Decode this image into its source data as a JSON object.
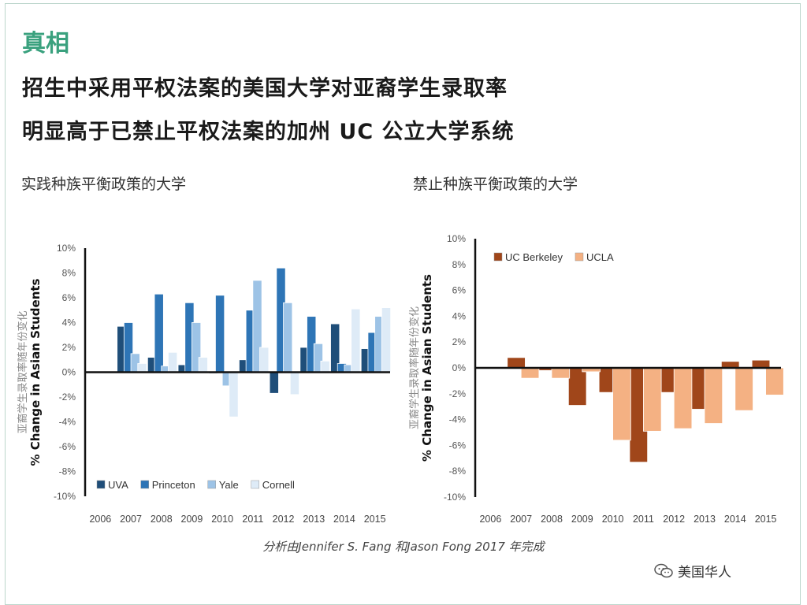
{
  "brand": "真相",
  "headline": {
    "line1": "招生中采用平权法案的美国大学对亚裔学生录取率",
    "line2": "明显高于已禁止平权法案的加州 UC 公立大学系统"
  },
  "left_subtitle": "实践种族平衡政策的大学",
  "right_subtitle": "禁止种族平衡政策的大学",
  "credit": "分析由Jennifer S. Fang 和Jason Fong 2017 年完成",
  "watermark": "美国华人",
  "colors": {
    "uva": "#1f4e79",
    "princeton": "#2e75b6",
    "yale": "#9dc3e6",
    "cornell": "#deebf7",
    "ucb": "#a0461a",
    "ucla": "#f4b183",
    "brand": "#3aa17e"
  },
  "chart_data": [
    {
      "type": "bar",
      "title": "实践种族平衡政策的大学",
      "ylabel": "% Change in Asian Students",
      "ylabel_cn": "亚裔学生录取率随年份变化",
      "xlabel": "",
      "ylim": [
        -10,
        10
      ],
      "yticks": [
        "10%",
        "8%",
        "6%",
        "4%",
        "2%",
        "0%",
        "-2%",
        "-4%",
        "-6%",
        "-8%",
        "-10%"
      ],
      "categories": [
        "2006",
        "2007",
        "2008",
        "2009",
        "2010",
        "2011",
        "2012",
        "2013",
        "2014",
        "2015"
      ],
      "series": [
        {
          "name": "UVA",
          "values": [
            0,
            3.7,
            1.2,
            0.6,
            -0.1,
            1.0,
            -1.7,
            2.0,
            3.9,
            1.9
          ]
        },
        {
          "name": "Princeton",
          "values": [
            0,
            4.0,
            6.3,
            5.6,
            6.2,
            5.0,
            8.4,
            4.5,
            0.7,
            3.2
          ]
        },
        {
          "name": "Yale",
          "values": [
            0,
            1.5,
            0.5,
            4.0,
            -1.1,
            7.4,
            5.6,
            2.3,
            0.6,
            4.5
          ]
        },
        {
          "name": "Cornell",
          "values": [
            0,
            0.7,
            1.6,
            1.2,
            -3.6,
            2.0,
            -1.8,
            0.9,
            5.1,
            5.2
          ]
        }
      ],
      "legend_position": "bottom-right"
    },
    {
      "type": "bar",
      "title": "禁止种族平衡政策的大学",
      "ylabel": "% Change in Asian Students",
      "ylabel_cn": "亚裔学生录取率随年份变化",
      "xlabel": "",
      "ylim": [
        -10,
        10
      ],
      "yticks": [
        "10%",
        "8%",
        "6%",
        "4%",
        "2%",
        "0%",
        "-2%",
        "-4%",
        "-6%",
        "-8%",
        "-10%"
      ],
      "categories": [
        "2006",
        "2007",
        "2008",
        "2009",
        "2010",
        "2011",
        "2012",
        "2013",
        "2014",
        "2015"
      ],
      "series": [
        {
          "name": "UC Berkeley",
          "values": [
            0,
            0.8,
            -0.2,
            -2.9,
            -1.9,
            -7.3,
            -1.9,
            -3.2,
            0.5,
            0.6
          ]
        },
        {
          "name": "UCLA",
          "values": [
            0,
            -0.8,
            -0.8,
            -0.3,
            -5.6,
            -4.9,
            -4.7,
            -4.3,
            -3.3,
            -2.1
          ]
        }
      ],
      "legend_position": "top-left"
    }
  ]
}
